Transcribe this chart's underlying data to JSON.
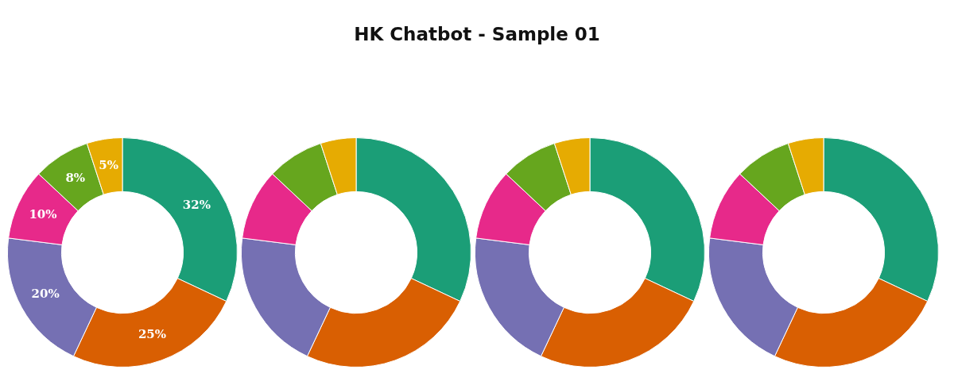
{
  "chart_data": [
    {
      "type": "donut",
      "categories": [
        null,
        null,
        null,
        null,
        null,
        null
      ],
      "values": [
        32,
        25,
        20,
        10,
        8,
        5
      ],
      "colors": [
        "#1b9e77",
        "#d95f02",
        "#7570b3",
        "#e7298a",
        "#66a61e",
        "#e6ab02"
      ],
      "value_labels": [
        "32%",
        "25%",
        "20%",
        "10%",
        "8%",
        "5%"
      ],
      "legend": false
    },
    {
      "type": "donut",
      "categories": [
        null,
        null,
        null,
        null,
        null,
        null
      ],
      "values": [
        32,
        25,
        20,
        10,
        8,
        5
      ],
      "colors": [
        "#1b9e77",
        "#d95f02",
        "#7570b3",
        "#e7298a",
        "#66a61e",
        "#e6ab02"
      ],
      "legend": false
    },
    {
      "type": "donut",
      "title": "HK Chatbot - Sample 01",
      "categories": [
        null,
        null,
        null,
        null,
        null,
        null
      ],
      "values": [
        32,
        25,
        20,
        10,
        8,
        5
      ],
      "colors": [
        "#1b9e77",
        "#d95f02",
        "#7570b3",
        "#e7298a",
        "#66a61e",
        "#e6ab02"
      ],
      "legend": false
    },
    {
      "type": "donut",
      "categories": [
        null,
        null,
        null,
        null,
        null,
        null
      ],
      "values": [
        32,
        25,
        20,
        10,
        8,
        5
      ],
      "colors": [
        "#1b9e77",
        "#d95f02",
        "#7570b3",
        "#e7298a",
        "#66a61e",
        "#e6ab02"
      ],
      "legend": false
    }
  ]
}
